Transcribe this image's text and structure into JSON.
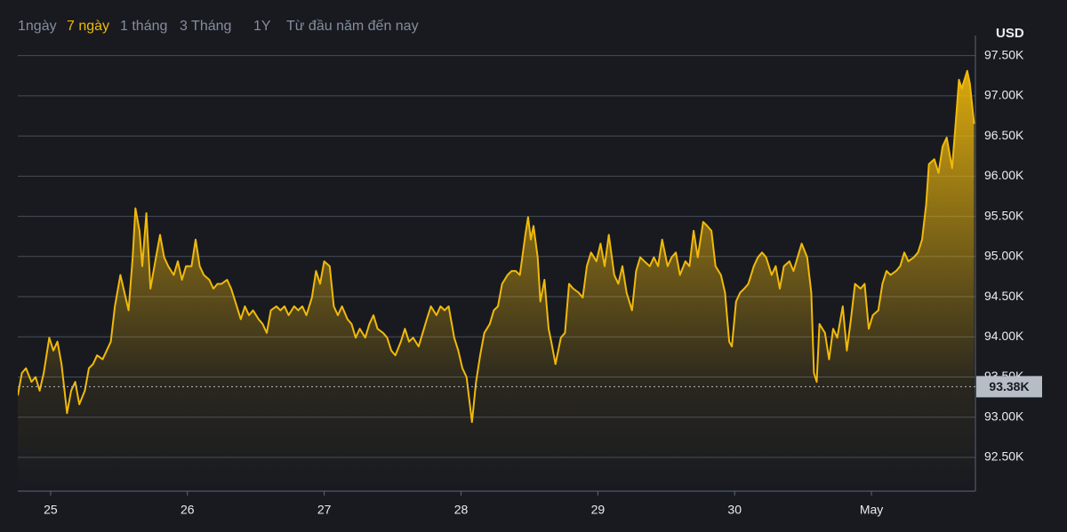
{
  "range_buttons": [
    "1ngày",
    "7 ngày",
    "1 tháng",
    "3 Tháng",
    "1Y",
    "Từ đầu năm đến nay"
  ],
  "active_range": 1,
  "chart_data": {
    "type": "area",
    "y_axis_label": "USD",
    "xlim": [
      24.76,
      31.76
    ],
    "xticks": [
      {
        "value": 25,
        "label": "25"
      },
      {
        "value": 26,
        "label": "26"
      },
      {
        "value": 27,
        "label": "27"
      },
      {
        "value": 28,
        "label": "28"
      },
      {
        "value": 29,
        "label": "29"
      },
      {
        "value": 30,
        "label": "30"
      },
      {
        "value": 31,
        "label": "May"
      }
    ],
    "ylim": [
      92080,
      97750
    ],
    "yticks": [
      {
        "value": 92500,
        "label": "92.50K"
      },
      {
        "value": 93000,
        "label": "93.00K"
      },
      {
        "value": 93500,
        "label": "93.50K"
      },
      {
        "value": 94000,
        "label": "94.00K"
      },
      {
        "value": 94500,
        "label": "94.50K"
      },
      {
        "value": 95000,
        "label": "95.00K"
      },
      {
        "value": 95500,
        "label": "95.50K"
      },
      {
        "value": 96000,
        "label": "96.00K"
      },
      {
        "value": 96500,
        "label": "96.50K"
      },
      {
        "value": 97000,
        "label": "97.00K"
      },
      {
        "value": 97500,
        "label": "97.50K"
      }
    ],
    "grid": true,
    "reference_line": {
      "value": 93380,
      "label": "93.38K"
    },
    "x": [
      24.76,
      24.79,
      24.82,
      24.86,
      24.89,
      24.92,
      24.95,
      24.99,
      25.02,
      25.05,
      25.08,
      25.12,
      25.15,
      25.18,
      25.21,
      25.25,
      25.28,
      25.31,
      25.34,
      25.38,
      25.41,
      25.44,
      25.47,
      25.51,
      25.54,
      25.57,
      25.6,
      25.62,
      25.65,
      25.67,
      25.7,
      25.73,
      25.77,
      25.8,
      25.83,
      25.86,
      25.9,
      25.93,
      25.96,
      25.99,
      26.03,
      26.06,
      26.09,
      26.12,
      26.16,
      26.19,
      26.22,
      26.25,
      26.29,
      26.32,
      26.35,
      26.39,
      26.42,
      26.45,
      26.48,
      26.52,
      26.55,
      26.58,
      26.61,
      26.65,
      26.68,
      26.71,
      26.74,
      26.78,
      26.81,
      26.84,
      26.87,
      26.91,
      26.94,
      26.97,
      27.0,
      27.04,
      27.07,
      27.1,
      27.13,
      27.17,
      27.2,
      27.23,
      27.26,
      27.3,
      27.33,
      27.36,
      27.39,
      27.43,
      27.46,
      27.49,
      27.52,
      27.56,
      27.59,
      27.62,
      27.65,
      27.69,
      27.72,
      27.75,
      27.78,
      27.82,
      27.85,
      27.88,
      27.91,
      27.95,
      27.98,
      28.01,
      28.04,
      28.08,
      28.11,
      28.14,
      28.17,
      28.21,
      28.24,
      28.27,
      28.3,
      28.34,
      28.37,
      28.4,
      28.43,
      28.47,
      28.49,
      28.51,
      28.53,
      28.56,
      28.58,
      28.61,
      28.64,
      28.66,
      28.69,
      28.73,
      28.76,
      28.79,
      28.82,
      28.86,
      28.89,
      28.92,
      28.95,
      28.99,
      29.02,
      29.05,
      29.08,
      29.12,
      29.15,
      29.18,
      29.21,
      29.25,
      29.28,
      29.31,
      29.34,
      29.38,
      29.41,
      29.44,
      29.47,
      29.51,
      29.54,
      29.57,
      29.6,
      29.64,
      29.67,
      29.7,
      29.73,
      29.77,
      29.8,
      29.83,
      29.86,
      29.9,
      29.93,
      29.96,
      29.98,
      30.01,
      30.04,
      30.07,
      30.1,
      30.14,
      30.17,
      30.2,
      30.23,
      30.27,
      30.3,
      30.33,
      30.36,
      30.4,
      30.43,
      30.46,
      30.49,
      30.53,
      30.56,
      30.58,
      30.6,
      30.62,
      30.66,
      30.69,
      30.72,
      30.75,
      30.79,
      30.82,
      30.85,
      30.88,
      30.92,
      30.95,
      30.98,
      31.01,
      31.05,
      31.08,
      31.11,
      31.14,
      31.18,
      31.21,
      31.24,
      31.27,
      31.31,
      31.34,
      31.37,
      31.4,
      31.42,
      31.46,
      31.49,
      31.52,
      31.55,
      31.59,
      31.62,
      31.64,
      31.66,
      31.7,
      31.72,
      31.75
    ],
    "series": [
      {
        "color": "#f0b90b",
        "values": [
          93270,
          93550,
          93610,
          93440,
          93500,
          93330,
          93550,
          93990,
          93830,
          93940,
          93660,
          93050,
          93330,
          93440,
          93160,
          93330,
          93610,
          93660,
          93770,
          93720,
          93830,
          93940,
          94380,
          94770,
          94550,
          94330,
          94990,
          95600,
          95320,
          94880,
          95540,
          94600,
          94990,
          95270,
          94990,
          94880,
          94770,
          94940,
          94710,
          94880,
          94880,
          95210,
          94880,
          94770,
          94710,
          94600,
          94660,
          94660,
          94710,
          94600,
          94440,
          94220,
          94380,
          94270,
          94330,
          94220,
          94160,
          94050,
          94330,
          94380,
          94330,
          94380,
          94270,
          94380,
          94330,
          94380,
          94270,
          94490,
          94820,
          94660,
          94940,
          94880,
          94380,
          94270,
          94380,
          94220,
          94160,
          93990,
          94100,
          93990,
          94160,
          94270,
          94100,
          94050,
          93990,
          93830,
          93770,
          93940,
          94100,
          93940,
          93990,
          93880,
          94050,
          94220,
          94380,
          94270,
          94380,
          94330,
          94380,
          93990,
          93830,
          93610,
          93500,
          92940,
          93440,
          93770,
          94050,
          94160,
          94330,
          94380,
          94660,
          94770,
          94820,
          94820,
          94770,
          95270,
          95490,
          95210,
          95380,
          94990,
          94440,
          94710,
          94100,
          93940,
          93660,
          93990,
          94050,
          94660,
          94600,
          94550,
          94490,
          94880,
          95050,
          94940,
          95160,
          94880,
          95270,
          94770,
          94660,
          94880,
          94550,
          94330,
          94820,
          94990,
          94940,
          94880,
          94990,
          94880,
          95210,
          94880,
          94990,
          95050,
          94770,
          94940,
          94880,
          95320,
          94990,
          95430,
          95380,
          95320,
          94880,
          94770,
          94550,
          93940,
          93880,
          94440,
          94550,
          94600,
          94660,
          94880,
          94990,
          95050,
          94990,
          94770,
          94880,
          94600,
          94880,
          94940,
          94820,
          94990,
          95160,
          94990,
          94550,
          93550,
          93440,
          94160,
          94050,
          93720,
          94100,
          93990,
          94380,
          93830,
          94220,
          94660,
          94600,
          94660,
          94100,
          94270,
          94330,
          94660,
          94820,
          94770,
          94820,
          94880,
          95050,
          94940,
          94990,
          95050,
          95210,
          95650,
          96150,
          96210,
          96040,
          96370,
          96480,
          96100,
          96760,
          97200,
          97090,
          97310,
          97150,
          96650
        ]
      }
    ]
  }
}
